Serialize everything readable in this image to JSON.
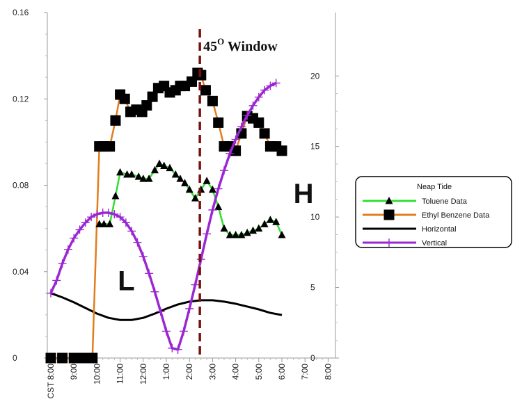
{
  "chart_data": {
    "type": "line",
    "title": "",
    "x_ticks": [
      "CST 8:00",
      "9:00",
      "10:00",
      "11:00",
      "12:00",
      "1:00",
      "2:00",
      "3:00",
      "4:00",
      "5:00",
      "6:00",
      "7:00",
      "8:00"
    ],
    "xlim": [
      8,
      20
    ],
    "y_left": {
      "ticks": [
        "0",
        "0.04",
        "0.08",
        "0.12",
        "0.16"
      ],
      "lim": [
        0,
        0.16
      ]
    },
    "y_right": {
      "ticks": [
        "0",
        "5",
        "10",
        "15",
        "20"
      ],
      "lim": [
        0,
        24.5
      ]
    },
    "annotations": [
      {
        "name": "window-label",
        "text": "45",
        "superscript": "O",
        "suffix": " Window",
        "x": 14.6
      },
      {
        "name": "low-label",
        "text": "L",
        "x": 10.9,
        "y_right": 4.8
      },
      {
        "name": "high-label",
        "text": "H",
        "x": 18.5,
        "y_right": 11.0
      }
    ],
    "window_line_x": 14.45,
    "grid": false,
    "legend": {
      "title": "Neap Tide",
      "placement": "right",
      "entries": [
        "Toluene Data",
        "Ethyl Benzene Data",
        "Horizontal",
        "Vertical"
      ]
    },
    "series": [
      {
        "name": "Toluene Data",
        "axis": "left",
        "color": "#33dd33",
        "marker": "triangle",
        "x": [
          10.1,
          10.3,
          10.55,
          10.8,
          11.0,
          11.3,
          11.5,
          11.8,
          12.0,
          12.25,
          12.5,
          12.7,
          12.9,
          13.15,
          13.4,
          13.6,
          13.8,
          14.0,
          14.25,
          14.5,
          14.75,
          15.0,
          15.25,
          15.5,
          15.75,
          16.0,
          16.25,
          16.5,
          16.75,
          17.0,
          17.25,
          17.5,
          17.75,
          18.0
        ],
        "y": [
          0.062,
          0.062,
          0.062,
          0.075,
          0.086,
          0.085,
          0.085,
          0.084,
          0.083,
          0.083,
          0.087,
          0.09,
          0.089,
          0.088,
          0.085,
          0.083,
          0.081,
          0.078,
          0.074,
          0.078,
          0.082,
          0.078,
          0.07,
          0.06,
          0.057,
          0.057,
          0.057,
          0.058,
          0.059,
          0.06,
          0.062,
          0.064,
          0.063,
          0.057
        ]
      },
      {
        "name": "Ethyl Benzene Data",
        "axis": "left",
        "color": "#e27d1d",
        "marker": "square",
        "x": [
          8.0,
          8.5,
          9.0,
          9.4,
          9.8,
          10.1,
          10.3,
          10.55,
          10.8,
          11.0,
          11.2,
          11.45,
          11.7,
          11.95,
          12.15,
          12.4,
          12.65,
          12.9,
          13.15,
          13.4,
          13.6,
          13.8,
          14.1,
          14.35,
          14.5,
          14.7,
          15.0,
          15.25,
          15.5,
          15.75,
          16.0,
          16.25,
          16.5,
          16.75,
          17.0,
          17.25,
          17.5,
          17.75,
          18.0
        ],
        "y": [
          0.0,
          0.0,
          0.0,
          0.0,
          0.0,
          0.098,
          0.098,
          0.098,
          0.11,
          0.122,
          0.12,
          0.114,
          0.115,
          0.114,
          0.117,
          0.121,
          0.125,
          0.126,
          0.123,
          0.124,
          0.126,
          0.126,
          0.128,
          0.132,
          0.131,
          0.124,
          0.119,
          0.109,
          0.098,
          0.098,
          0.096,
          0.104,
          0.112,
          0.111,
          0.109,
          0.104,
          0.098,
          0.098,
          0.096
        ]
      },
      {
        "name": "Horizontal",
        "axis": "right",
        "color": "#000000",
        "marker": "none",
        "x": [
          8.0,
          8.5,
          9.0,
          9.5,
          10.0,
          10.5,
          11.0,
          11.5,
          12.0,
          12.5,
          13.0,
          13.5,
          14.0,
          14.5,
          15.0,
          15.5,
          16.0,
          16.5,
          17.0,
          17.5,
          18.0
        ],
        "y": [
          4.6,
          4.3,
          3.95,
          3.55,
          3.15,
          2.85,
          2.7,
          2.7,
          2.85,
          3.15,
          3.5,
          3.8,
          4.0,
          4.1,
          4.1,
          4.0,
          3.85,
          3.65,
          3.45,
          3.2,
          3.05
        ]
      },
      {
        "name": "Vertical",
        "axis": "right",
        "color": "#9b27d2",
        "marker": "plus",
        "x": [
          8.0,
          8.25,
          8.5,
          8.75,
          9.0,
          9.25,
          9.5,
          9.75,
          10.0,
          10.25,
          10.5,
          10.75,
          11.0,
          11.25,
          11.5,
          11.75,
          12.0,
          12.25,
          12.5,
          12.75,
          13.0,
          13.25,
          13.5,
          13.75,
          14.0,
          14.25,
          14.5,
          14.75,
          15.0,
          15.25,
          15.5,
          15.75,
          16.0,
          16.25,
          16.5,
          16.75,
          17.0,
          17.25,
          17.5,
          17.75
        ],
        "y": [
          4.6,
          5.5,
          6.7,
          7.7,
          8.5,
          9.1,
          9.6,
          10.0,
          10.2,
          10.3,
          10.3,
          10.2,
          10.0,
          9.6,
          9.0,
          8.2,
          7.2,
          6.0,
          4.7,
          3.3,
          1.9,
          0.7,
          0.6,
          1.9,
          3.5,
          5.2,
          7.0,
          8.8,
          10.5,
          12.0,
          13.3,
          14.5,
          15.5,
          16.4,
          17.2,
          17.9,
          18.5,
          19.0,
          19.3,
          19.5
        ]
      }
    ]
  }
}
